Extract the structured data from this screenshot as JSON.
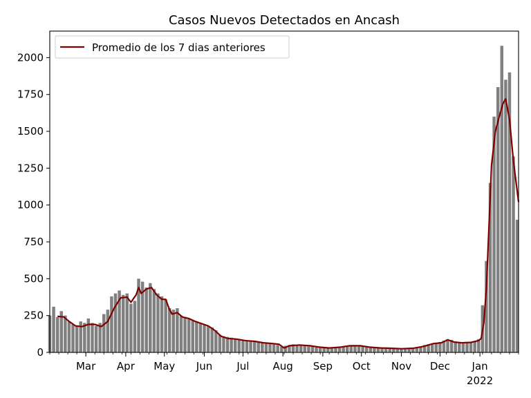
{
  "chart_data": {
    "type": "bar",
    "title": "Casos Nuevos Detectados en Ancash",
    "xlabel": "",
    "ylabel": "",
    "ylim": [
      0,
      2180
    ],
    "yticks": [
      0,
      250,
      500,
      750,
      1000,
      1250,
      1500,
      1750,
      2000
    ],
    "xlim": [
      "2021-02-01",
      "2022-01-31"
    ],
    "xticks": [
      {
        "date": "2021-03-01",
        "label": "Mar"
      },
      {
        "date": "2021-04-01",
        "label": "Apr"
      },
      {
        "date": "2021-05-01",
        "label": "May"
      },
      {
        "date": "2021-06-01",
        "label": "Jun"
      },
      {
        "date": "2021-07-01",
        "label": "Jul"
      },
      {
        "date": "2021-08-01",
        "label": "Aug"
      },
      {
        "date": "2021-09-01",
        "label": "Sep"
      },
      {
        "date": "2021-10-01",
        "label": "Oct"
      },
      {
        "date": "2021-11-01",
        "label": "Nov"
      },
      {
        "date": "2021-12-01",
        "label": "Dec"
      },
      {
        "date": "2022-01-01",
        "label": "Jan",
        "sublabel": "2022"
      }
    ],
    "bar_color": "#808080",
    "legend": {
      "position": "top-left",
      "entries": [
        {
          "label": "Promedio de los 7 dias anteriores",
          "color": "#800000"
        }
      ]
    },
    "series": [
      {
        "name": "Casos nuevos",
        "kind": "bar",
        "points": [
          [
            "2021-02-01",
            250
          ],
          [
            "2021-02-04",
            310
          ],
          [
            "2021-02-07",
            240
          ],
          [
            "2021-02-10",
            280
          ],
          [
            "2021-02-13",
            250
          ],
          [
            "2021-02-16",
            210
          ],
          [
            "2021-02-19",
            190
          ],
          [
            "2021-02-22",
            180
          ],
          [
            "2021-02-25",
            210
          ],
          [
            "2021-02-28",
            200
          ],
          [
            "2021-03-03",
            230
          ],
          [
            "2021-03-06",
            200
          ],
          [
            "2021-03-09",
            180
          ],
          [
            "2021-03-12",
            200
          ],
          [
            "2021-03-15",
            260
          ],
          [
            "2021-03-18",
            290
          ],
          [
            "2021-03-21",
            380
          ],
          [
            "2021-03-24",
            400
          ],
          [
            "2021-03-27",
            420
          ],
          [
            "2021-03-30",
            390
          ],
          [
            "2021-04-02",
            400
          ],
          [
            "2021-04-05",
            330
          ],
          [
            "2021-04-08",
            350
          ],
          [
            "2021-04-11",
            500
          ],
          [
            "2021-04-14",
            480
          ],
          [
            "2021-04-17",
            440
          ],
          [
            "2021-04-20",
            470
          ],
          [
            "2021-04-23",
            430
          ],
          [
            "2021-04-26",
            400
          ],
          [
            "2021-04-29",
            380
          ],
          [
            "2021-05-02",
            360
          ],
          [
            "2021-05-05",
            300
          ],
          [
            "2021-05-08",
            290
          ],
          [
            "2021-05-11",
            300
          ],
          [
            "2021-05-14",
            250
          ],
          [
            "2021-05-17",
            240
          ],
          [
            "2021-05-20",
            230
          ],
          [
            "2021-05-23",
            220
          ],
          [
            "2021-05-26",
            210
          ],
          [
            "2021-05-29",
            200
          ],
          [
            "2021-06-01",
            190
          ],
          [
            "2021-06-04",
            180
          ],
          [
            "2021-06-07",
            170
          ],
          [
            "2021-06-10",
            150
          ],
          [
            "2021-06-13",
            120
          ],
          [
            "2021-06-16",
            110
          ],
          [
            "2021-06-19",
            105
          ],
          [
            "2021-06-22",
            100
          ],
          [
            "2021-06-25",
            95
          ],
          [
            "2021-06-28",
            90
          ],
          [
            "2021-07-01",
            85
          ],
          [
            "2021-07-04",
            80
          ],
          [
            "2021-07-07",
            75
          ],
          [
            "2021-07-10",
            80
          ],
          [
            "2021-07-13",
            70
          ],
          [
            "2021-07-16",
            65
          ],
          [
            "2021-07-19",
            60
          ],
          [
            "2021-07-22",
            65
          ],
          [
            "2021-07-25",
            60
          ],
          [
            "2021-07-28",
            50
          ],
          [
            "2021-07-31",
            40
          ],
          [
            "2021-08-03",
            45
          ],
          [
            "2021-08-06",
            50
          ],
          [
            "2021-08-09",
            55
          ],
          [
            "2021-08-12",
            50
          ],
          [
            "2021-08-15",
            45
          ],
          [
            "2021-08-18",
            45
          ],
          [
            "2021-08-21",
            40
          ],
          [
            "2021-08-24",
            40
          ],
          [
            "2021-08-27",
            35
          ],
          [
            "2021-08-30",
            35
          ],
          [
            "2021-09-02",
            30
          ],
          [
            "2021-09-05",
            30
          ],
          [
            "2021-09-08",
            35
          ],
          [
            "2021-09-11",
            30
          ],
          [
            "2021-09-14",
            35
          ],
          [
            "2021-09-17",
            40
          ],
          [
            "2021-09-20",
            45
          ],
          [
            "2021-09-23",
            45
          ],
          [
            "2021-09-26",
            50
          ],
          [
            "2021-09-29",
            40
          ],
          [
            "2021-10-02",
            45
          ],
          [
            "2021-10-05",
            40
          ],
          [
            "2021-10-08",
            35
          ],
          [
            "2021-10-11",
            35
          ],
          [
            "2021-10-14",
            30
          ],
          [
            "2021-10-17",
            30
          ],
          [
            "2021-10-20",
            30
          ],
          [
            "2021-10-23",
            30
          ],
          [
            "2021-10-26",
            25
          ],
          [
            "2021-10-29",
            25
          ],
          [
            "2021-11-01",
            25
          ],
          [
            "2021-11-04",
            25
          ],
          [
            "2021-11-07",
            25
          ],
          [
            "2021-11-10",
            30
          ],
          [
            "2021-11-13",
            35
          ],
          [
            "2021-11-16",
            40
          ],
          [
            "2021-11-19",
            50
          ],
          [
            "2021-11-22",
            55
          ],
          [
            "2021-11-25",
            60
          ],
          [
            "2021-11-28",
            65
          ],
          [
            "2021-12-01",
            70
          ],
          [
            "2021-12-04",
            80
          ],
          [
            "2021-12-07",
            90
          ],
          [
            "2021-12-10",
            85
          ],
          [
            "2021-12-13",
            75
          ],
          [
            "2021-12-16",
            70
          ],
          [
            "2021-12-19",
            65
          ],
          [
            "2021-12-22",
            70
          ],
          [
            "2021-12-25",
            70
          ],
          [
            "2021-12-28",
            75
          ],
          [
            "2021-12-31",
            90
          ],
          [
            "2022-01-03",
            320
          ],
          [
            "2022-01-06",
            620
          ],
          [
            "2022-01-09",
            1150
          ],
          [
            "2022-01-12",
            1600
          ],
          [
            "2022-01-15",
            1800
          ],
          [
            "2022-01-18",
            2080
          ],
          [
            "2022-01-21",
            1850
          ],
          [
            "2022-01-24",
            1900
          ],
          [
            "2022-01-27",
            1330
          ],
          [
            "2022-01-30",
            900
          ]
        ]
      },
      {
        "name": "Promedio de los 7 dias anteriores",
        "kind": "line",
        "color": "#800000",
        "points": [
          [
            "2021-02-07",
            245
          ],
          [
            "2021-02-12",
            240
          ],
          [
            "2021-02-16",
            210
          ],
          [
            "2021-02-21",
            180
          ],
          [
            "2021-02-26",
            175
          ],
          [
            "2021-03-03",
            190
          ],
          [
            "2021-03-08",
            190
          ],
          [
            "2021-03-13",
            175
          ],
          [
            "2021-03-18",
            210
          ],
          [
            "2021-03-23",
            300
          ],
          [
            "2021-03-28",
            370
          ],
          [
            "2021-04-02",
            375
          ],
          [
            "2021-04-05",
            340
          ],
          [
            "2021-04-09",
            390
          ],
          [
            "2021-04-11",
            440
          ],
          [
            "2021-04-13",
            400
          ],
          [
            "2021-04-17",
            430
          ],
          [
            "2021-04-21",
            440
          ],
          [
            "2021-04-25",
            390
          ],
          [
            "2021-04-29",
            360
          ],
          [
            "2021-05-02",
            360
          ],
          [
            "2021-05-05",
            290
          ],
          [
            "2021-05-07",
            260
          ],
          [
            "2021-05-11",
            270
          ],
          [
            "2021-05-15",
            240
          ],
          [
            "2021-05-20",
            230
          ],
          [
            "2021-05-25",
            210
          ],
          [
            "2021-05-30",
            195
          ],
          [
            "2021-06-04",
            180
          ],
          [
            "2021-06-09",
            150
          ],
          [
            "2021-06-14",
            110
          ],
          [
            "2021-06-19",
            95
          ],
          [
            "2021-06-26",
            90
          ],
          [
            "2021-07-03",
            80
          ],
          [
            "2021-07-10",
            75
          ],
          [
            "2021-07-17",
            65
          ],
          [
            "2021-07-24",
            60
          ],
          [
            "2021-07-29",
            55
          ],
          [
            "2021-08-02",
            30
          ],
          [
            "2021-08-06",
            45
          ],
          [
            "2021-08-14",
            50
          ],
          [
            "2021-08-22",
            45
          ],
          [
            "2021-08-30",
            35
          ],
          [
            "2021-09-06",
            30
          ],
          [
            "2021-09-14",
            35
          ],
          [
            "2021-09-22",
            45
          ],
          [
            "2021-09-30",
            45
          ],
          [
            "2021-10-08",
            35
          ],
          [
            "2021-10-16",
            30
          ],
          [
            "2021-10-24",
            28
          ],
          [
            "2021-11-01",
            25
          ],
          [
            "2021-11-10",
            28
          ],
          [
            "2021-11-18",
            40
          ],
          [
            "2021-11-26",
            60
          ],
          [
            "2021-12-02",
            65
          ],
          [
            "2021-12-07",
            85
          ],
          [
            "2021-12-12",
            70
          ],
          [
            "2021-12-18",
            65
          ],
          [
            "2021-12-25",
            68
          ],
          [
            "2021-12-31",
            80
          ],
          [
            "2022-01-02",
            95
          ],
          [
            "2022-01-04",
            200
          ],
          [
            "2022-01-06",
            430
          ],
          [
            "2022-01-08",
            850
          ],
          [
            "2022-01-10",
            1270
          ],
          [
            "2022-01-13",
            1500
          ],
          [
            "2022-01-16",
            1600
          ],
          [
            "2022-01-19",
            1690
          ],
          [
            "2022-01-21",
            1720
          ],
          [
            "2022-01-24",
            1580
          ],
          [
            "2022-01-27",
            1300
          ],
          [
            "2022-01-31",
            1020
          ]
        ]
      }
    ]
  }
}
